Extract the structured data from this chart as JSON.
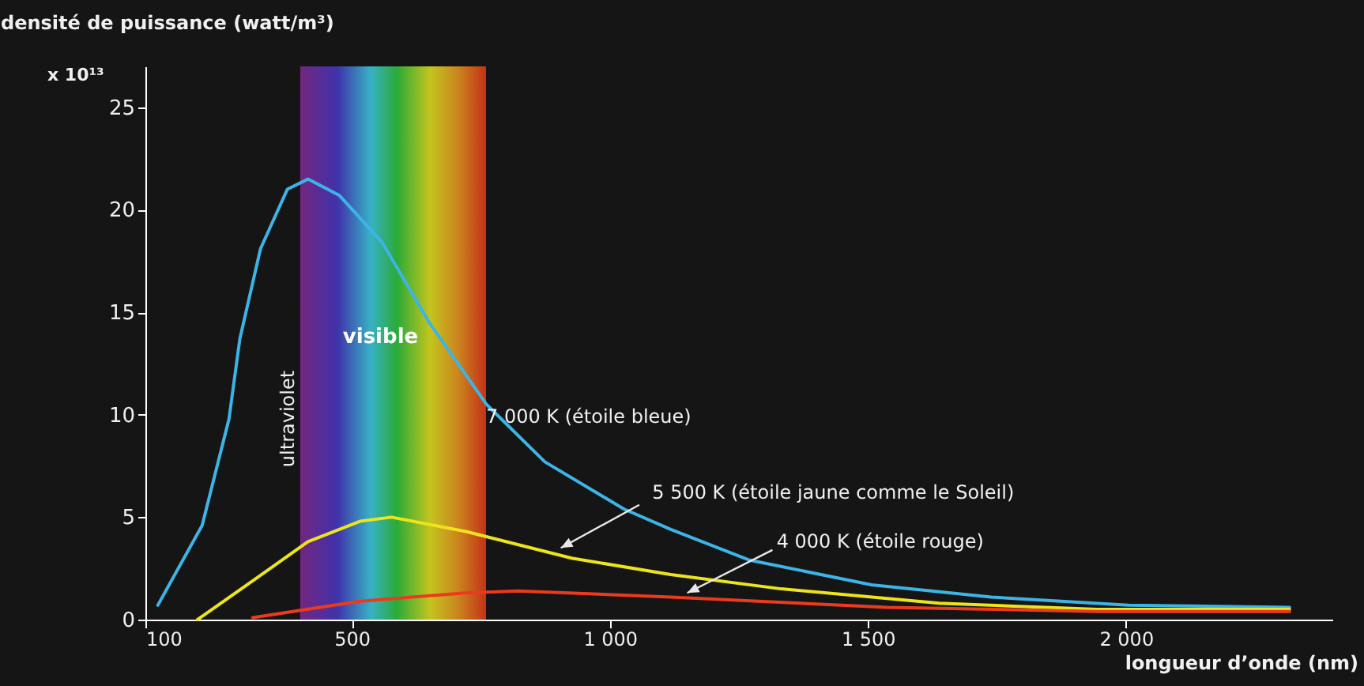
{
  "chart_data": {
    "type": "line",
    "xlabel": "longueur d’onde (nm)",
    "ylabel": "densité de puissance (watt/m³)",
    "annotations": [
      "x 10¹³",
      "ultraviolet"
    ],
    "xlim": [
      100,
      2400
    ],
    "ylim": [
      0,
      27
    ],
    "xticks": [
      100,
      500,
      {
        "value": 1000,
        "label": "1 000"
      },
      {
        "value": 1500,
        "label": "1 500"
      },
      {
        "value": 2000,
        "label": "2 000"
      }
    ],
    "yticks": [
      0,
      5,
      10,
      15,
      20,
      25
    ],
    "bands": [
      {
        "axis": "x",
        "from": 400,
        "to": 760,
        "label": "visible"
      }
    ],
    "grid": false,
    "marker": "none",
    "line_style": "solid",
    "series": [
      {
        "name": "7 000 K (étoile bleue)",
        "color": "#3db4e6",
        "x": [
          124,
          210,
          262,
          283,
          323,
          375,
          415,
          476,
          559,
          650,
          761,
          874,
          1027,
          1118,
          1271,
          1507,
          1739,
          2005,
          2317
        ],
        "values": [
          0.7,
          4.6,
          9.8,
          13.7,
          18.1,
          21.0,
          21.5,
          20.7,
          18.4,
          14.5,
          10.5,
          7.7,
          5.4,
          4.4,
          2.9,
          1.7,
          1.1,
          0.7,
          0.6
        ]
      },
      {
        "name": "5 500 K (étoile jaune comme le Soleil)",
        "color": "#ece41c",
        "x": [
          201,
          314,
          415,
          516,
          577,
          721,
          926,
          1118,
          1332,
          1638,
          1944,
          2317
        ],
        "values": [
          0,
          2.0,
          3.8,
          4.8,
          5.0,
          4.3,
          3.0,
          2.2,
          1.5,
          0.8,
          0.5,
          0.5
        ]
      },
      {
        "name": "4 000 K (étoile rouge)",
        "color": "#ec3a1e",
        "x": [
          308,
          516,
          721,
          822,
          1118,
          1537,
          1944,
          2317
        ],
        "values": [
          0.1,
          0.9,
          1.3,
          1.4,
          1.1,
          0.6,
          0.4,
          0.4
        ]
      }
    ]
  }
}
